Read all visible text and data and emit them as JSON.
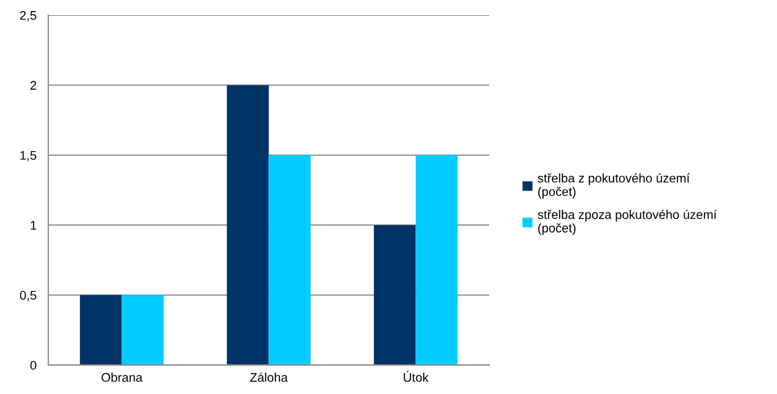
{
  "chart_data": {
    "type": "bar",
    "categories": [
      "Obrana",
      "Záloha",
      "Útok"
    ],
    "series": [
      {
        "name": "střelba z pokutového území\n(počet)",
        "color": "#003366",
        "values": [
          0.5,
          2,
          1
        ]
      },
      {
        "name": "střelba zpoza pokutového území\n(počet)",
        "color": "#00ccff",
        "values": [
          0.5,
          1.5,
          1.5
        ]
      }
    ],
    "ylim": [
      0,
      2.5
    ],
    "yticks": [
      0,
      {
        "value": 0.5,
        "label": "0,5"
      },
      1,
      {
        "value": 1.5,
        "label": "1,5"
      },
      2,
      {
        "value": 2.5,
        "label": "2,5"
      }
    ],
    "grid": "y",
    "legend": "right"
  }
}
